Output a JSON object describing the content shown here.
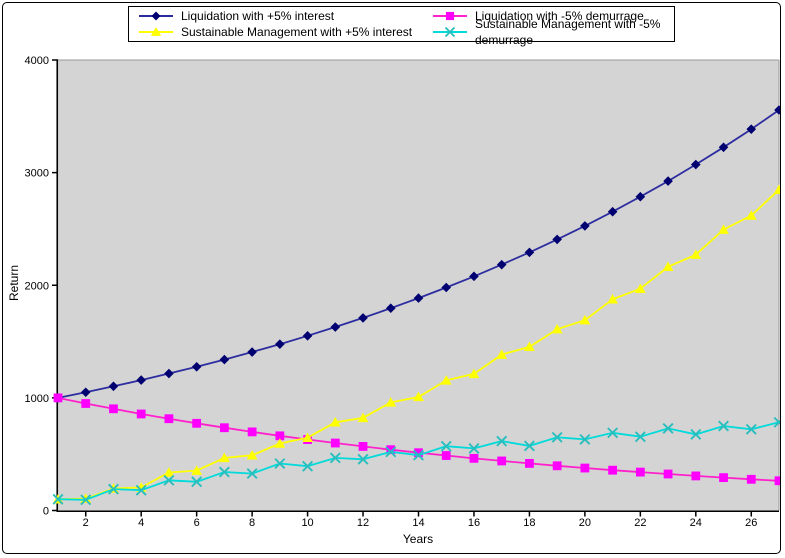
{
  "figure": {
    "background": "#ffffff",
    "plot_background": "#d4d4d4",
    "border_color": "#000000"
  },
  "chart_data": {
    "type": "line",
    "title": "",
    "xlabel": "Years",
    "ylabel": "Return",
    "xlim": [
      1,
      27
    ],
    "ylim": [
      0,
      4000
    ],
    "x_ticks": [
      2,
      4,
      6,
      8,
      10,
      12,
      14,
      16,
      18,
      20,
      22,
      24,
      26
    ],
    "y_ticks": [
      0,
      1000,
      2000,
      3000,
      4000
    ],
    "grid": false,
    "legend_position": "top-center",
    "x": [
      1,
      2,
      3,
      4,
      5,
      6,
      7,
      8,
      9,
      10,
      11,
      12,
      13,
      14,
      15,
      16,
      17,
      18,
      19,
      20,
      21,
      22,
      23,
      24,
      25,
      26,
      27
    ],
    "series": [
      {
        "key": "liquidation-plus5-interest",
        "name": "Liquidation with +5% interest",
        "marker": "diamond",
        "marker_color": "#000070",
        "line_color": "#2d2da0",
        "values": [
          1000,
          1050,
          1103,
          1158,
          1216,
          1276,
          1340,
          1407,
          1477,
          1551,
          1629,
          1710,
          1796,
          1886,
          1980,
          2079,
          2183,
          2292,
          2407,
          2527,
          2653,
          2786,
          2925,
          3072,
          3225,
          3386,
          3556
        ]
      },
      {
        "key": "liquidation-minus5-demurrage",
        "name": "Liquidation with -5% demurrage",
        "marker": "square",
        "marker_color": "#ff00ff",
        "line_color": "#ff22cc",
        "values": [
          1000,
          950,
          903,
          857,
          815,
          774,
          735,
          698,
          663,
          630,
          599,
          569,
          540,
          513,
          488,
          463,
          440,
          418,
          397,
          377,
          358,
          341,
          324,
          307,
          292,
          277,
          264
        ]
      },
      {
        "key": "sustainable-plus5-interest",
        "name": "Sustainable Management with +5% interest",
        "marker": "triangle",
        "marker_color": "#ffff00",
        "line_color": "#ffff00",
        "values": [
          100,
          105,
          195,
          205,
          337,
          354,
          467,
          490,
          595,
          646,
          783,
          822,
          960,
          1008,
          1155,
          1213,
          1384,
          1453,
          1610,
          1690,
          1875,
          1969,
          2164,
          2271,
          2494,
          2619,
          2848
        ]
      },
      {
        "key": "sustainable-minus5-demurrage",
        "name": "Sustainable Management with -5% demurrage",
        "marker": "x",
        "marker_color": "#2abdbd",
        "line_color": "#00dada",
        "values": [
          100,
          95,
          190,
          180,
          268,
          255,
          342,
          328,
          417,
          393,
          467,
          455,
          520,
          491,
          571,
          551,
          616,
          574,
          650,
          631,
          690,
          655,
          729,
          676,
          750,
          721,
          783
        ]
      }
    ]
  }
}
